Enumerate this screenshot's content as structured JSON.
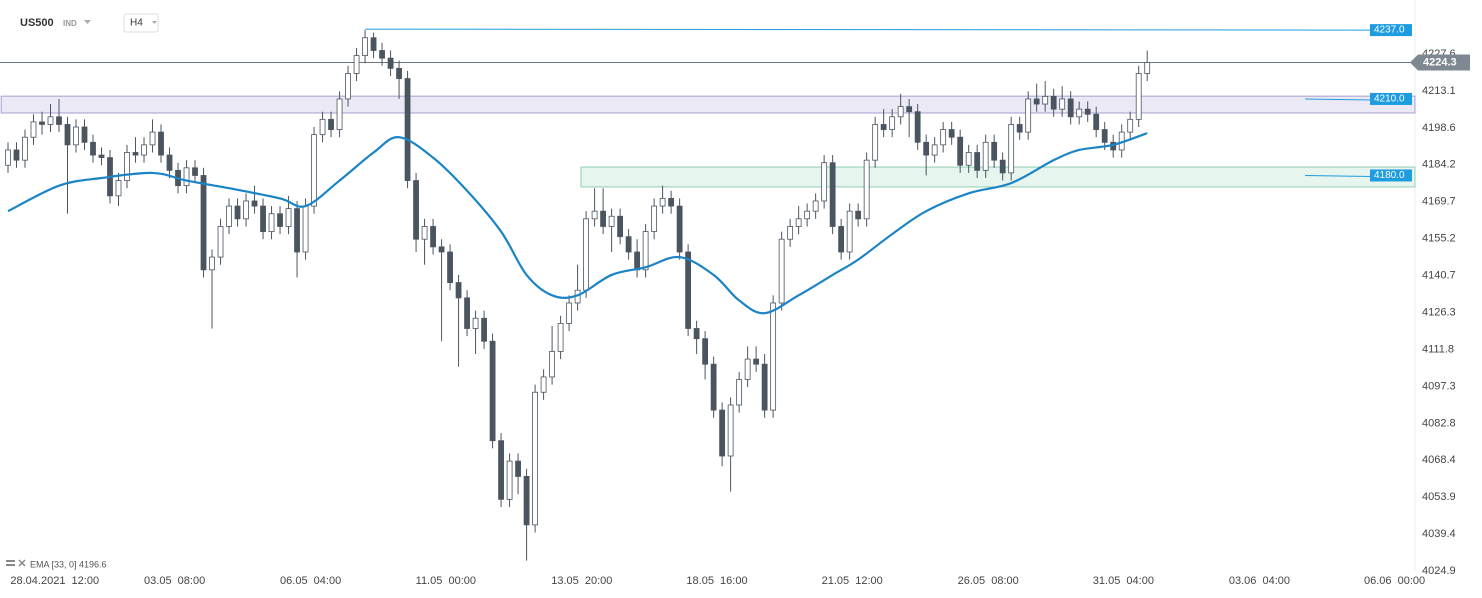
{
  "header": {
    "symbol": "US500",
    "market": "IND",
    "interval": "H4"
  },
  "chart_data": {
    "type": "candlestick",
    "open": [
      4184,
      4190,
      4186,
      4195,
      4201,
      4200,
      4203,
      4200,
      4192,
      4199,
      4193,
      4188,
      4187,
      4172,
      4178,
      4189,
      4188,
      4192,
      4197,
      4188,
      4182,
      4176,
      4183,
      4180,
      4143,
      4148,
      4160,
      4168,
      4163,
      4170,
      4168,
      4158,
      4165,
      4160,
      4167,
      4150,
      4168,
      4196,
      4202,
      4198,
      4210,
      4220,
      4227,
      4234,
      4229,
      4226,
      4222,
      4218,
      4178,
      4155,
      4160,
      4152,
      4150,
      4138,
      4132,
      4120,
      4124,
      4115,
      4076,
      4053,
      4068,
      4062,
      4043,
      4095,
      4101,
      4111,
      4122,
      4130,
      4135,
      4163,
      4166,
      4160,
      4164,
      4156,
      4150,
      4143,
      4158,
      4168,
      4171,
      4168,
      4150,
      4120,
      4116,
      4106,
      4088,
      4070,
      4090,
      4100,
      4108,
      4106,
      4088,
      4130,
      4155,
      4160,
      4163,
      4166,
      4170,
      4185,
      4160,
      4150,
      4166,
      4163,
      4186,
      4200,
      4198,
      4203,
      4207,
      4205,
      4193,
      4188,
      4192,
      4198,
      4195,
      4184,
      4189,
      4182,
      4193,
      4186,
      4181,
      4200,
      4197,
      4210,
      4208,
      4211,
      4206,
      4210,
      4203,
      4206,
      4204,
      4198,
      4193,
      4190,
      4197,
      4202,
      4220
    ],
    "high": [
      4193,
      4193,
      4198,
      4204,
      4205,
      4208,
      4210,
      4203,
      4202,
      4202,
      4196,
      4191,
      4190,
      4181,
      4192,
      4195,
      4195,
      4202,
      4200,
      4191,
      4185,
      4186,
      4186,
      4183,
      4151,
      4163,
      4171,
      4171,
      4173,
      4176,
      4171,
      4168,
      4168,
      4172,
      4170,
      4171,
      4199,
      4205,
      4205,
      4213,
      4223,
      4230,
      4237,
      4236,
      4232,
      4229,
      4225,
      4221,
      4181,
      4163,
      4163,
      4155,
      4153,
      4141,
      4135,
      4127,
      4127,
      4118,
      4079,
      4071,
      4071,
      4065,
      4098,
      4104,
      4121,
      4125,
      4133,
      4145,
      4166,
      4175,
      4175,
      4167,
      4167,
      4159,
      4155,
      4161,
      4171,
      4176,
      4174,
      4171,
      4153,
      4123,
      4119,
      4109,
      4091,
      4093,
      4103,
      4113,
      4113,
      4110,
      4133,
      4158,
      4163,
      4168,
      4169,
      4173,
      4188,
      4188,
      4163,
      4169,
      4169,
      4189,
      4203,
      4206,
      4206,
      4212,
      4210,
      4208,
      4196,
      4195,
      4201,
      4201,
      4198,
      4192,
      4192,
      4196,
      4196,
      4189,
      4203,
      4203,
      4213,
      4216,
      4217,
      4214,
      4215,
      4213,
      4209,
      4209,
      4207,
      4201,
      4196,
      4200,
      4205,
      4223,
      4229
    ],
    "low": [
      4181,
      4183,
      4183,
      4192,
      4196,
      4197,
      4197,
      4165,
      4189,
      4190,
      4185,
      4184,
      4169,
      4168,
      4175,
      4185,
      4185,
      4189,
      4185,
      4179,
      4173,
      4173,
      4177,
      4140,
      4120,
      4145,
      4157,
      4160,
      4160,
      4165,
      4155,
      4155,
      4157,
      4157,
      4140,
      4147,
      4165,
      4193,
      4195,
      4195,
      4207,
      4217,
      4224,
      4226,
      4223,
      4219,
      4210,
      4175,
      4150,
      4145,
      4149,
      4115,
      4135,
      4105,
      4117,
      4110,
      4112,
      4073,
      4050,
      4050,
      4055,
      4029,
      4040,
      4092,
      4098,
      4108,
      4119,
      4127,
      4132,
      4160,
      4157,
      4150,
      4153,
      4147,
      4140,
      4140,
      4155,
      4165,
      4165,
      4147,
      4117,
      4110,
      4100,
      4085,
      4066,
      4056,
      4087,
      4097,
      4103,
      4085,
      4085,
      4127,
      4152,
      4157,
      4160,
      4163,
      4167,
      4157,
      4147,
      4147,
      4160,
      4160,
      4183,
      4195,
      4195,
      4200,
      4195,
      4190,
      4180,
      4185,
      4189,
      4192,
      4181,
      4181,
      4179,
      4179,
      4183,
      4178,
      4178,
      4194,
      4194,
      4205,
      4205,
      4203,
      4203,
      4200,
      4200,
      4201,
      4195,
      4190,
      4187,
      4187,
      4194,
      4199,
      4217
    ],
    "close": [
      4190,
      4186,
      4195,
      4201,
      4200,
      4203,
      4200,
      4192,
      4199,
      4193,
      4188,
      4187,
      4172,
      4178,
      4189,
      4188,
      4192,
      4197,
      4188,
      4182,
      4176,
      4183,
      4180,
      4143,
      4148,
      4160,
      4168,
      4163,
      4170,
      4168,
      4158,
      4165,
      4160,
      4167,
      4150,
      4168,
      4196,
      4202,
      4198,
      4210,
      4220,
      4227,
      4234,
      4229,
      4226,
      4222,
      4218,
      4178,
      4155,
      4160,
      4152,
      4150,
      4138,
      4132,
      4120,
      4124,
      4115,
      4076,
      4053,
      4068,
      4062,
      4043,
      4095,
      4101,
      4111,
      4122,
      4130,
      4135,
      4163,
      4166,
      4160,
      4164,
      4156,
      4150,
      4143,
      4158,
      4168,
      4171,
      4168,
      4150,
      4120,
      4116,
      4106,
      4088,
      4070,
      4090,
      4100,
      4108,
      4106,
      4088,
      4130,
      4155,
      4160,
      4163,
      4166,
      4170,
      4185,
      4160,
      4150,
      4166,
      4163,
      4186,
      4200,
      4198,
      4203,
      4207,
      4205,
      4193,
      4188,
      4192,
      4198,
      4195,
      4184,
      4189,
      4182,
      4193,
      4186,
      4181,
      4200,
      4197,
      4210,
      4208,
      4211,
      4206,
      4210,
      4203,
      4206,
      4204,
      4198,
      4193,
      4190,
      4197,
      4202,
      4220,
      4224.3
    ],
    "up_color": "#ffffff",
    "down_color": "#4b5560",
    "ema": {
      "label": "EMA [33, 0] 4196.6",
      "color": "#1b84c6",
      "x": [
        0,
        6,
        11,
        17,
        21,
        26,
        32,
        35,
        39,
        43,
        46,
        50,
        54,
        58,
        61,
        64,
        67,
        71,
        75,
        79,
        83,
        86,
        89,
        93,
        97,
        100,
        104,
        108,
        113,
        118,
        123,
        126,
        130,
        134
      ],
      "values": [
        4166,
        4176,
        4179,
        4181,
        4178,
        4175,
        4171,
        4168,
        4178,
        4189,
        4195,
        4187,
        4174,
        4158,
        4141,
        4133,
        4133,
        4141,
        4144,
        4148,
        4141,
        4131,
        4126,
        4133,
        4141,
        4147,
        4157,
        4166,
        4173,
        4177,
        4186,
        4190,
        4192,
        4196.6
      ]
    },
    "levels": [
      {
        "value": 4237,
        "label": "4237.0",
        "start": 42
      }
    ],
    "zones": [
      {
        "value": 4210,
        "label": "4210.0",
        "from": 4204.5,
        "to": 4211.1,
        "start": -0.8,
        "color": "#ece9f7",
        "border": "#a79fd0"
      },
      {
        "value": 4180,
        "label": "4180.0",
        "from": 4175.5,
        "to": 4183.3,
        "start": 67.4,
        "color": "#e6f5ee",
        "border": "#8fcfb0"
      }
    ],
    "last_price": 4224.3,
    "xlim": [
      -0.94,
      165.5
    ],
    "ylim": [
      4025.3,
      4248.8
    ],
    "yticks": [
      4227.6,
      4213.1,
      4198.6,
      4184.2,
      4169.7,
      4155.2,
      4140.7,
      4126.3,
      4111.8,
      4097.3,
      4082.8,
      4068.4,
      4053.9,
      4039.4,
      4024.9
    ],
    "xticks": [
      {
        "value": 5.5,
        "label": "28.04.2021  12:00"
      },
      {
        "value": 19.6,
        "label": "03.05  08:00"
      },
      {
        "value": 35.6,
        "label": "06.05  04:00"
      },
      {
        "value": 51.5,
        "label": "11.05  00:00"
      },
      {
        "value": 67.5,
        "label": "13.05  20:00"
      },
      {
        "value": 83.4,
        "label": "18.05  16:00"
      },
      {
        "value": 99.3,
        "label": "21.05  12:00"
      },
      {
        "value": 115.3,
        "label": "26.05  08:00"
      },
      {
        "value": 131.2,
        "label": "31.05  04:00"
      },
      {
        "value": 147.2,
        "label": "03.06  04:00"
      },
      {
        "value": 163.1,
        "label": "06.06  00:00"
      }
    ],
    "grid": false
  }
}
